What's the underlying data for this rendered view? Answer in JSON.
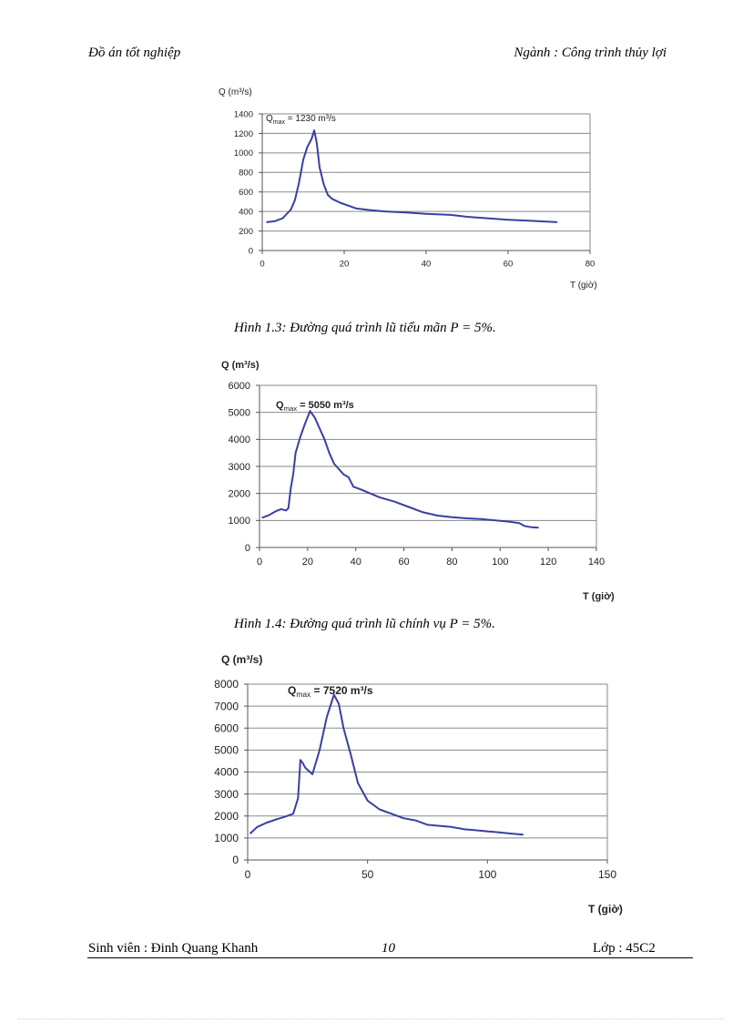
{
  "header": {
    "left": "Đồ án tốt nghiệp",
    "right": "Ngành : Công trình thủy lợi"
  },
  "captions": {
    "fig13": "Hình 1.3: Đường quá trình lũ tiểu mãn P = 5%.",
    "fig14": "Hình 1.4: Đường quá trình lũ chính vụ  P = 5%."
  },
  "footer": {
    "student": "Sinh viên : Đinh Quang Khanh",
    "page": "10",
    "class": "Lớp : 45C2"
  },
  "colors": {
    "line": "#3a3fa0",
    "grid": "#8a8a8a"
  },
  "chart_data": [
    {
      "type": "line",
      "title": "",
      "ylabel": "Q (m³/s)",
      "xlabel": "T (giờ)",
      "annotation": {
        "text_Q": "Q",
        "text_sub": "max",
        "text_rest": " = 1230 m³/s",
        "bold": false
      },
      "xlim": [
        0,
        80
      ],
      "ylim": [
        0,
        1400
      ],
      "xticks": [
        0,
        20,
        40,
        60,
        80
      ],
      "yticks": [
        0,
        200,
        400,
        600,
        800,
        1000,
        1200,
        1400
      ],
      "xtick_labels": [
        "0",
        "20",
        "40",
        "60",
        "80"
      ],
      "ytick_labels": [
        "0",
        "200",
        "400",
        "600",
        "800",
        "1000",
        "1200",
        "1400"
      ],
      "series": [
        {
          "name": "P = 5% (tiểu mãn)",
          "x": [
            1,
            3,
            5,
            7,
            8,
            9,
            10,
            11,
            12,
            12.7,
            13.3,
            14,
            15,
            16,
            17,
            19,
            21,
            23,
            26,
            30,
            35,
            40,
            46,
            50,
            55,
            60,
            65,
            72
          ],
          "y": [
            290,
            300,
            330,
            420,
            520,
            700,
            930,
            1060,
            1140,
            1230,
            1100,
            850,
            680,
            570,
            530,
            490,
            460,
            430,
            415,
            400,
            390,
            375,
            365,
            345,
            330,
            315,
            305,
            290
          ]
        }
      ]
    },
    {
      "type": "line",
      "title": "",
      "ylabel": "Q (m³/s)",
      "xlabel": "T (giờ)",
      "annotation": {
        "text_Q": "Q",
        "text_sub": "max",
        "text_rest": " = 5050 m³/s",
        "bold": true
      },
      "xlim": [
        0,
        140
      ],
      "ylim": [
        0,
        6000
      ],
      "xticks": [
        0,
        20,
        40,
        60,
        80,
        100,
        120,
        140
      ],
      "yticks": [
        0,
        1000,
        2000,
        3000,
        4000,
        5000,
        6000
      ],
      "xtick_labels": [
        "0",
        "20",
        "40",
        "60",
        "80",
        "100",
        "120",
        "140"
      ],
      "ytick_labels": [
        "0",
        "1000",
        "2000",
        "3000",
        "4000",
        "5000",
        "6000"
      ],
      "series": [
        {
          "name": "P = 5% (chính vụ)",
          "x": [
            1,
            4,
            7,
            9,
            11,
            12,
            13,
            14,
            15,
            17,
            19,
            21,
            23,
            25,
            27,
            29,
            31,
            33,
            35,
            37,
            39,
            42,
            46,
            50,
            56,
            62,
            68,
            74,
            80,
            86,
            92,
            98,
            104,
            108,
            110,
            113,
            116
          ],
          "y": [
            1100,
            1200,
            1350,
            1420,
            1370,
            1450,
            2200,
            2700,
            3500,
            4100,
            4600,
            5050,
            4800,
            4400,
            4000,
            3500,
            3100,
            2900,
            2700,
            2600,
            2250,
            2150,
            2000,
            1850,
            1700,
            1500,
            1300,
            1180,
            1120,
            1080,
            1050,
            1000,
            950,
            900,
            800,
            750,
            730
          ]
        }
      ]
    },
    {
      "type": "line",
      "title": "",
      "ylabel": "Q (m³/s)",
      "xlabel": "T (giờ)",
      "annotation": {
        "text_Q": "Q",
        "text_sub": "max",
        "text_rest": " = 7520 m³/s",
        "bold": true
      },
      "xlim": [
        0,
        150
      ],
      "ylim": [
        0,
        8000
      ],
      "xticks": [
        0,
        50,
        100,
        150
      ],
      "yticks": [
        0,
        1000,
        2000,
        3000,
        4000,
        5000,
        6000,
        7000,
        8000
      ],
      "xtick_labels": [
        "0",
        "50",
        "100",
        "150"
      ],
      "ytick_labels": [
        "0",
        "1000",
        "2000",
        "3000",
        "4000",
        "5000",
        "6000",
        "7000",
        "8000"
      ],
      "series": [
        {
          "name": "P = 5%",
          "x": [
            1,
            4,
            8,
            12,
            16,
            19,
            21,
            22,
            23,
            24,
            27,
            30,
            33,
            36,
            38,
            40,
            43,
            46,
            50,
            55,
            60,
            65,
            70,
            75,
            80,
            85,
            90,
            95,
            100,
            105,
            110,
            115
          ],
          "y": [
            1200,
            1500,
            1700,
            1850,
            1980,
            2100,
            2800,
            4550,
            4400,
            4200,
            3900,
            5000,
            6500,
            7520,
            7100,
            6000,
            4800,
            3500,
            2700,
            2300,
            2100,
            1900,
            1800,
            1600,
            1550,
            1500,
            1400,
            1350,
            1300,
            1250,
            1200,
            1150
          ]
        }
      ]
    }
  ]
}
